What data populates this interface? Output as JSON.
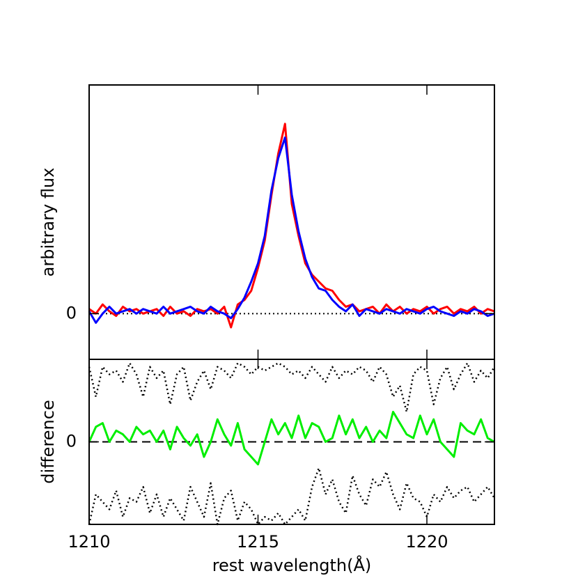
{
  "chart_data": [
    {
      "type": "line",
      "ylabel": "arbitrary flux",
      "xlim": [
        1210,
        1222
      ],
      "ylim": [
        -1,
        5
      ],
      "yticks": [
        0
      ],
      "zero_line": "dotted",
      "x": [
        1210,
        1210.2,
        1210.4,
        1210.6,
        1210.8,
        1211,
        1211.2,
        1211.4,
        1211.6,
        1211.8,
        1212,
        1212.2,
        1212.4,
        1212.6,
        1212.8,
        1213,
        1213.2,
        1213.4,
        1213.6,
        1213.8,
        1214,
        1214.2,
        1214.4,
        1214.6,
        1214.8,
        1215,
        1215.2,
        1215.4,
        1215.6,
        1215.8,
        1216,
        1216.2,
        1216.4,
        1216.6,
        1216.8,
        1217,
        1217.2,
        1217.4,
        1217.6,
        1217.8,
        1218,
        1218.2,
        1218.4,
        1218.6,
        1218.8,
        1219,
        1219.2,
        1219.4,
        1219.6,
        1219.8,
        1220,
        1220.2,
        1220.4,
        1220.6,
        1220.8,
        1221,
        1221.2,
        1221.4,
        1221.6,
        1221.8,
        1222
      ],
      "series": [
        {
          "color": "#ff0000",
          "values": [
            0.1,
            0.0,
            0.2,
            0.05,
            -0.05,
            0.15,
            0.05,
            0.1,
            0.0,
            0.05,
            0.1,
            -0.05,
            0.15,
            0.0,
            0.05,
            -0.05,
            0.1,
            0.05,
            0.1,
            0.0,
            0.15,
            -0.3,
            0.2,
            0.3,
            0.5,
            1.0,
            1.6,
            2.6,
            3.5,
            4.15,
            2.4,
            1.7,
            1.1,
            0.85,
            0.7,
            0.55,
            0.5,
            0.3,
            0.15,
            0.2,
            0.05,
            0.1,
            0.15,
            0.0,
            0.2,
            0.05,
            0.15,
            0.0,
            0.1,
            0.05,
            0.15,
            0.0,
            0.1,
            0.15,
            0.0,
            0.1,
            0.05,
            0.15,
            0.0,
            0.1,
            0.05
          ]
        },
        {
          "color": "#0000ff",
          "values": [
            0.05,
            -0.2,
            0.0,
            0.15,
            0.0,
            0.05,
            0.1,
            0.0,
            0.1,
            0.05,
            0.0,
            0.15,
            0.0,
            0.05,
            0.1,
            0.15,
            0.05,
            0.0,
            0.15,
            0.05,
            0.0,
            -0.1,
            0.1,
            0.35,
            0.7,
            1.1,
            1.7,
            2.7,
            3.4,
            3.85,
            2.6,
            1.8,
            1.2,
            0.8,
            0.55,
            0.5,
            0.3,
            0.15,
            0.05,
            0.2,
            -0.05,
            0.1,
            0.05,
            0.0,
            0.1,
            0.05,
            0.0,
            0.1,
            0.05,
            0.0,
            0.1,
            0.15,
            0.05,
            0.0,
            -0.05,
            0.05,
            0.0,
            0.1,
            0.05,
            -0.05,
            0.0
          ]
        }
      ]
    },
    {
      "type": "line",
      "ylabel": "difference",
      "xlabel": "rest wavelength(Å)",
      "xlim": [
        1210,
        1222
      ],
      "ylim": [
        -1.1,
        1.1
      ],
      "xticks": [
        1210,
        1215,
        1220
      ],
      "yticks": [
        0
      ],
      "zero_line": "dashed",
      "x": [
        1210,
        1210.2,
        1210.4,
        1210.6,
        1210.8,
        1211,
        1211.2,
        1211.4,
        1211.6,
        1211.8,
        1212,
        1212.2,
        1212.4,
        1212.6,
        1212.8,
        1213,
        1213.2,
        1213.4,
        1213.6,
        1213.8,
        1214,
        1214.2,
        1214.4,
        1214.6,
        1214.8,
        1215,
        1215.2,
        1215.4,
        1215.6,
        1215.8,
        1216,
        1216.2,
        1216.4,
        1216.6,
        1216.8,
        1217,
        1217.2,
        1217.4,
        1217.6,
        1217.8,
        1218,
        1218.2,
        1218.4,
        1218.6,
        1218.8,
        1219,
        1219.2,
        1219.4,
        1219.6,
        1219.8,
        1220,
        1220.2,
        1220.4,
        1220.6,
        1220.8,
        1221,
        1221.2,
        1221.4,
        1221.6,
        1221.8,
        1222
      ],
      "series": [
        {
          "color": "#000000",
          "dash": "dotted",
          "values": [
            1.0,
            0.6,
            1.0,
            0.9,
            0.95,
            0.8,
            1.05,
            0.9,
            0.6,
            1.0,
            0.85,
            0.95,
            0.5,
            0.9,
            1.0,
            0.55,
            0.8,
            0.95,
            0.7,
            1.0,
            0.95,
            0.85,
            1.05,
            1.0,
            0.9,
            1.0,
            0.95,
            1.0,
            1.05,
            1.0,
            0.9,
            0.95,
            0.85,
            1.0,
            0.9,
            0.8,
            1.0,
            0.85,
            0.95,
            0.9,
            1.0,
            0.95,
            0.8,
            1.0,
            0.9,
            0.6,
            0.75,
            0.4,
            0.9,
            1.0,
            0.95,
            0.5,
            0.85,
            1.0,
            0.7,
            0.9,
            1.05,
            0.8,
            0.95,
            0.85,
            1.0
          ]
        },
        {
          "color": "#000000",
          "dash": "dotted",
          "values": [
            -1.1,
            -0.7,
            -0.8,
            -0.9,
            -0.65,
            -1.0,
            -0.75,
            -0.8,
            -0.6,
            -0.95,
            -0.7,
            -1.0,
            -0.75,
            -0.9,
            -1.05,
            -0.6,
            -0.8,
            -1.0,
            -0.55,
            -1.1,
            -0.75,
            -0.65,
            -1.05,
            -0.8,
            -0.9,
            -1.1,
            -1.0,
            -1.05,
            -0.95,
            -1.1,
            -1.0,
            -0.9,
            -1.05,
            -0.6,
            -0.35,
            -0.7,
            -0.5,
            -0.8,
            -0.95,
            -0.45,
            -0.7,
            -0.85,
            -0.5,
            -0.6,
            -0.4,
            -0.7,
            -0.9,
            -0.55,
            -0.75,
            -0.8,
            -1.0,
            -0.7,
            -0.8,
            -0.6,
            -0.75,
            -0.65,
            -0.6,
            -0.8,
            -0.7,
            -0.6,
            -0.75
          ]
        },
        {
          "color": "#00ee00",
          "values": [
            0.0,
            0.2,
            0.25,
            0.0,
            0.15,
            0.1,
            0.0,
            0.2,
            0.1,
            0.15,
            0.0,
            0.15,
            -0.1,
            0.2,
            0.05,
            -0.05,
            0.1,
            -0.2,
            0.0,
            0.3,
            0.1,
            -0.05,
            0.25,
            -0.1,
            -0.2,
            -0.3,
            0.0,
            0.3,
            0.1,
            0.25,
            0.05,
            0.35,
            0.05,
            0.25,
            0.2,
            0.0,
            0.05,
            0.35,
            0.1,
            0.3,
            0.05,
            0.2,
            0.0,
            0.15,
            0.05,
            0.4,
            0.25,
            0.1,
            0.05,
            0.35,
            0.1,
            0.3,
            0.0,
            -0.1,
            -0.2,
            0.25,
            0.15,
            0.1,
            0.3,
            0.05,
            0.0
          ]
        }
      ]
    }
  ]
}
